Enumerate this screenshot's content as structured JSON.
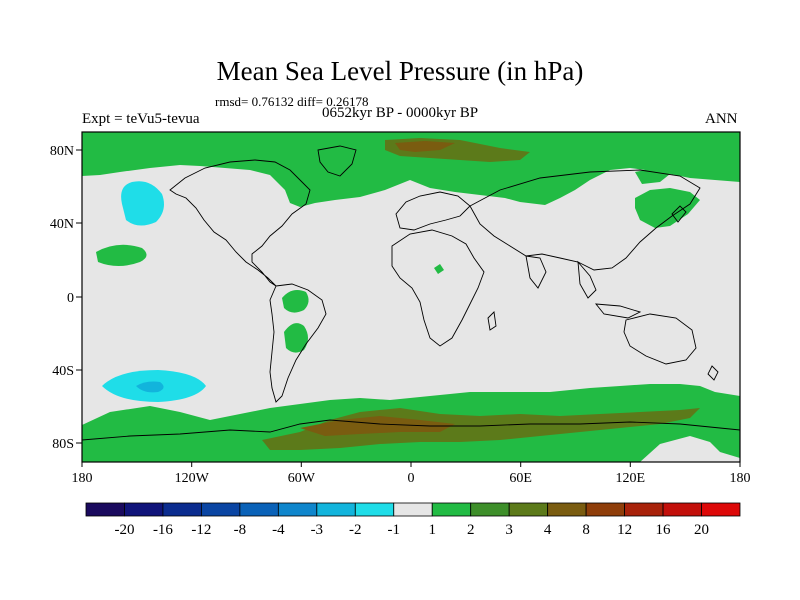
{
  "title": "Mean Sea Level Pressure (in hPa)",
  "stats": "rmsd= 0.76132 diff= 0.26178",
  "experiment": "Expt = teVu5-tevua",
  "period": "0652kyr BP - 0000kyr BP",
  "season": "ANN",
  "lat_labels": [
    "80N",
    "40N",
    "0",
    "40S",
    "80S"
  ],
  "lon_labels": [
    "180",
    "120W",
    "60W",
    "0",
    "60E",
    "120E",
    "180"
  ],
  "colorbar": {
    "labels": [
      "-20",
      "-16",
      "-12",
      "-8",
      "-4",
      "-3",
      "-2",
      "-1",
      "1",
      "2",
      "3",
      "4",
      "8",
      "12",
      "16",
      "20"
    ],
    "colors": [
      "#1a0a5e",
      "#10147a",
      "#0b2c8f",
      "#0a45a3",
      "#0a62b8",
      "#0f86cc",
      "#12b4dc",
      "#1fdde8",
      "#e6e6e6",
      "#22bb44",
      "#3e8f2a",
      "#5c7a1a",
      "#7a5c10",
      "#8f3e0a",
      "#a8220a",
      "#c20f0a",
      "#dd0808"
    ]
  },
  "map_colors": {
    "ocean": "#e6e6e6",
    "pos": "#22bb44",
    "pos_strong": "#5c7a1a",
    "pos_brown": "#7a5c10",
    "neg": "#1fdde8",
    "neg_strong": "#12b4dc"
  }
}
